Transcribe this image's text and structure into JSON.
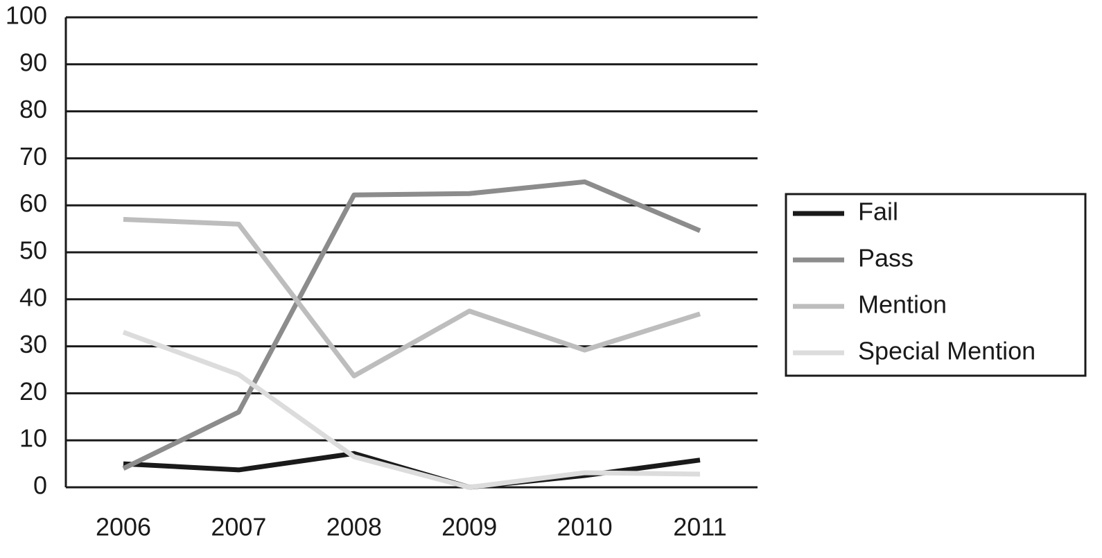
{
  "chart_data": {
    "type": "line",
    "categories": [
      "2006",
      "2007",
      "2008",
      "2009",
      "2010",
      "2011"
    ],
    "series": [
      {
        "name": "Fail",
        "color": "#1a1a1a",
        "values": [
          5,
          3.7,
          7.2,
          0,
          2.5,
          5.8
        ]
      },
      {
        "name": "Pass",
        "color": "#8c8c8c",
        "values": [
          4,
          16,
          62.2,
          62.5,
          65,
          54.6
        ]
      },
      {
        "name": "Mention",
        "color": "#bdbdbd",
        "values": [
          57,
          56,
          23.7,
          37.5,
          29.2,
          36.9
        ]
      },
      {
        "name": "Special Mention",
        "color": "#dcdcdc",
        "values": [
          33,
          24,
          6.5,
          0,
          3.1,
          2.8
        ]
      }
    ],
    "ylim": [
      0,
      100
    ],
    "yticks": [
      0,
      10,
      20,
      30,
      40,
      50,
      60,
      70,
      80,
      90,
      100
    ],
    "grid": true,
    "legend": "right"
  }
}
